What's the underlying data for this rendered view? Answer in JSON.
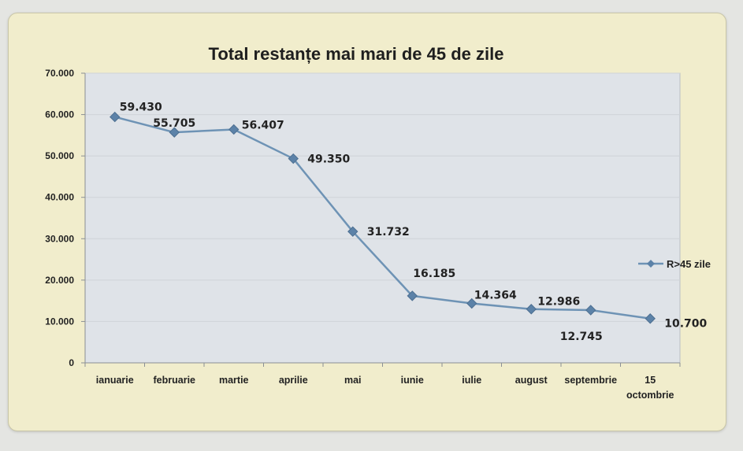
{
  "chart_data": {
    "type": "line",
    "title": "Total restanțe mai mari de 45 de zile",
    "categories": [
      "ianuarie",
      "februarie",
      "martie",
      "aprilie",
      "mai",
      "iunie",
      "iulie",
      "august",
      "septembrie",
      "15 octombrie"
    ],
    "series": [
      {
        "name": "R>45 zile",
        "values": [
          59430,
          55705,
          56407,
          49350,
          31732,
          16185,
          14364,
          12986,
          12745,
          10700
        ],
        "labels": [
          "59.430",
          "55.705",
          "56.407",
          "49.350",
          "31.732",
          "16.185",
          "14.364",
          "12.986",
          "12.745",
          "10.700"
        ]
      }
    ],
    "yticks": [
      "0",
      "10.000",
      "20.000",
      "30.000",
      "40.000",
      "50.000",
      "60.000",
      "70.000"
    ],
    "ylim": [
      0,
      70000
    ],
    "grid": true,
    "legend_position": "right",
    "colors": {
      "line": "#6e93b5",
      "marker": "#5c82a8",
      "grid": "#cfd3d8",
      "plot_bg": "#dfe3e8"
    }
  }
}
